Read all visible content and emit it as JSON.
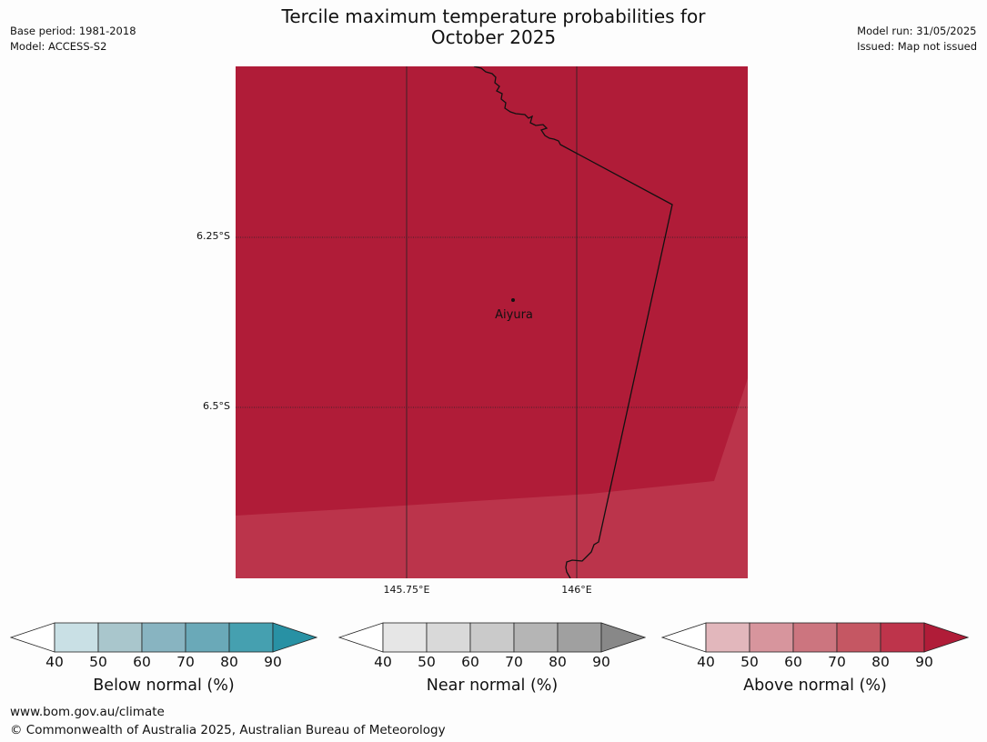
{
  "title_line1": "Tercile maximum temperature probabilities for",
  "title_line2": "October 2025",
  "base_period": "Base period: 1981-2018",
  "model": "Model: ACCESS-S2",
  "model_run": "Model run: 31/05/2025",
  "issued": "Issued: Map not issued",
  "map": {
    "lat_labels": [
      "6.25°S",
      "6.5°S"
    ],
    "lon_labels": [
      "145.75°E",
      "146°E"
    ],
    "place": "Aiyura",
    "fill_dark": "#b01c38",
    "fill_light": "#bb344b"
  },
  "colorbars": [
    {
      "label": "Below normal (%)",
      "ticks": [
        "40",
        "50",
        "60",
        "70",
        "80",
        "90"
      ],
      "colors": [
        "#c9e0e5",
        "#a9c6cc",
        "#88b4c1",
        "#6aa9b8",
        "#45a0b0",
        "#2891a4"
      ]
    },
    {
      "label": "Near normal (%)",
      "ticks": [
        "40",
        "50",
        "60",
        "70",
        "80",
        "90"
      ],
      "colors": [
        "#e6e6e6",
        "#d9d9d9",
        "#cacaca",
        "#b5b5b5",
        "#a0a0a0",
        "#888888"
      ]
    },
    {
      "label": "Above normal (%)",
      "ticks": [
        "40",
        "50",
        "60",
        "70",
        "80",
        "90"
      ],
      "colors": [
        "#e2b7bc",
        "#d7959d",
        "#cc757f",
        "#c55763",
        "#be344b",
        "#b01c38"
      ]
    }
  ],
  "footer_url": "www.bom.gov.au/climate",
  "footer_copyright": "© Commonwealth of Australia 2025, Australian Bureau of Meteorology"
}
